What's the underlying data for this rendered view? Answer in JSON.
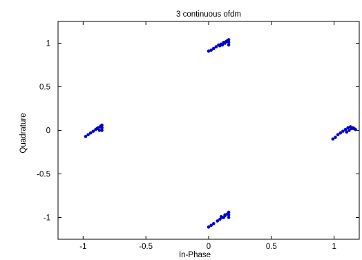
{
  "chart_data": {
    "type": "scatter",
    "title": "3 continuous ofdm",
    "xlabel": "In-Phase",
    "ylabel": "Quadrature",
    "xlim": [
      -1.2,
      1.2
    ],
    "ylim": [
      -1.25,
      1.25
    ],
    "xticks": [
      -1,
      -0.5,
      0,
      0.5,
      1
    ],
    "xtick_labels": [
      "-1",
      "-0.5",
      "0",
      "0.5",
      "1"
    ],
    "yticks": [
      -1,
      -0.5,
      0,
      0.5,
      1
    ],
    "ytick_labels": [
      "-1",
      "-0.5",
      "0",
      "0.5",
      "1"
    ],
    "grid": false,
    "marker_color": "#0000cc",
    "series": [
      {
        "points": [
          [
            0.0,
            0.91
          ],
          [
            0.02,
            0.92
          ],
          [
            0.04,
            0.94
          ],
          [
            0.06,
            0.96
          ],
          [
            0.08,
            0.98
          ],
          [
            0.1,
            0.99
          ],
          [
            0.12,
            1.01
          ],
          [
            0.14,
            1.02
          ],
          [
            0.15,
            1.03
          ],
          [
            0.16,
            1.04
          ],
          [
            0.16,
            1.01
          ],
          [
            0.16,
            0.98
          ],
          [
            0.13,
            1.0
          ],
          [
            0.11,
            0.98
          ],
          [
            0.09,
            0.97
          ],
          [
            -0.98,
            -0.07
          ],
          [
            -0.96,
            -0.05
          ],
          [
            -0.94,
            -0.03
          ],
          [
            -0.92,
            -0.01
          ],
          [
            -0.9,
            0.01
          ],
          [
            -0.88,
            0.03
          ],
          [
            -0.86,
            0.05
          ],
          [
            -0.85,
            0.06
          ],
          [
            -0.85,
            0.03
          ],
          [
            -0.85,
            0.0
          ],
          [
            -0.87,
            0.0
          ],
          [
            -0.89,
            0.02
          ],
          [
            -0.86,
            0.04
          ],
          [
            0.0,
            -1.11
          ],
          [
            0.02,
            -1.09
          ],
          [
            0.04,
            -1.07
          ],
          [
            0.07,
            -1.04
          ],
          [
            0.09,
            -1.02
          ],
          [
            0.11,
            -1.0
          ],
          [
            0.13,
            -0.98
          ],
          [
            0.15,
            -0.96
          ],
          [
            0.16,
            -0.94
          ],
          [
            0.16,
            -0.97
          ],
          [
            0.16,
            -1.0
          ],
          [
            0.13,
            -0.97
          ],
          [
            0.12,
            -1.0
          ],
          [
            0.1,
            -0.99
          ],
          [
            0.99,
            -0.1
          ],
          [
            1.01,
            -0.08
          ],
          [
            1.03,
            -0.05
          ],
          [
            1.05,
            -0.03
          ],
          [
            1.07,
            -0.01
          ],
          [
            1.09,
            0.01
          ],
          [
            1.11,
            0.03
          ],
          [
            1.13,
            0.04
          ],
          [
            1.15,
            0.03
          ],
          [
            1.16,
            0.02
          ],
          [
            1.17,
            0.01
          ],
          [
            1.14,
            0.02
          ],
          [
            1.12,
            0.0
          ],
          [
            1.1,
            -0.02
          ]
        ]
      }
    ]
  }
}
